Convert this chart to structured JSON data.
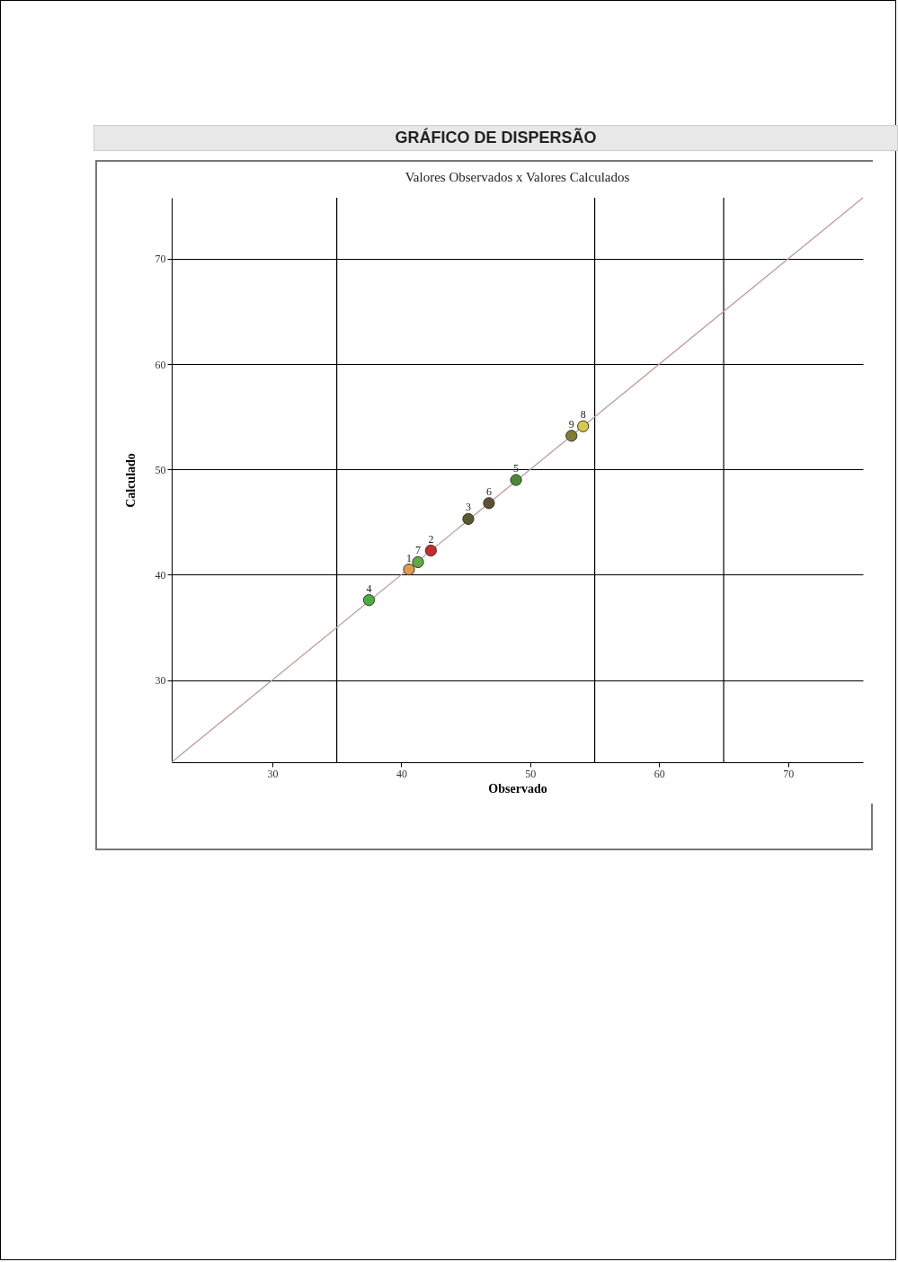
{
  "chart_data": {
    "type": "scatter",
    "title": "GRÁFICO DE DISPERSÃO",
    "subtitle": "Valores Observados x Valores Calculados",
    "xlabel": "Observado",
    "ylabel": "Calculado",
    "xlim": [
      22.2,
      75.8
    ],
    "ylim": [
      22.2,
      75.8
    ],
    "xticks": [
      30,
      40,
      50,
      60,
      70
    ],
    "yticks": [
      30,
      40,
      50,
      60,
      70
    ],
    "grid": "y",
    "series": [
      {
        "type": "scatter",
        "marker": "circle",
        "x": [
          40.6,
          42.3,
          45.2,
          37.5,
          48.9,
          46.8,
          41.3,
          54.1,
          53.2
        ],
        "values": [
          40.5,
          42.3,
          45.3,
          37.6,
          49.0,
          46.8,
          41.2,
          54.1,
          53.2
        ],
        "colors": [
          "#e09a48",
          "#cc2a2a",
          "#5a5a2c",
          "#48b040",
          "#4a8a34",
          "#5c5232",
          "#5cae42",
          "#d8c848",
          "#827c34"
        ]
      },
      {
        "type": "line",
        "x": [
          22.2,
          75.8
        ],
        "values": [
          22.2,
          75.8
        ],
        "color": "#c49a9a"
      }
    ],
    "ref_lines": [
      {
        "axis": "x",
        "value": 35,
        "color": "#000000"
      },
      {
        "axis": "x",
        "value": 55,
        "color": "#000000"
      },
      {
        "axis": "x",
        "value": 65,
        "color": "#000000"
      }
    ],
    "annotations": [
      {
        "text": "1",
        "x": 40.6,
        "y": 40.5
      },
      {
        "text": "2",
        "x": 42.3,
        "y": 42.3
      },
      {
        "text": "3",
        "x": 45.2,
        "y": 45.3
      },
      {
        "text": "4",
        "x": 37.5,
        "y": 37.6
      },
      {
        "text": "5",
        "x": 48.9,
        "y": 49.0
      },
      {
        "text": "6",
        "x": 46.8,
        "y": 46.8
      },
      {
        "text": "7",
        "x": 41.3,
        "y": 41.2
      },
      {
        "text": "8",
        "x": 54.1,
        "y": 54.1
      },
      {
        "text": "9",
        "x": 53.2,
        "y": 53.2
      }
    ]
  }
}
